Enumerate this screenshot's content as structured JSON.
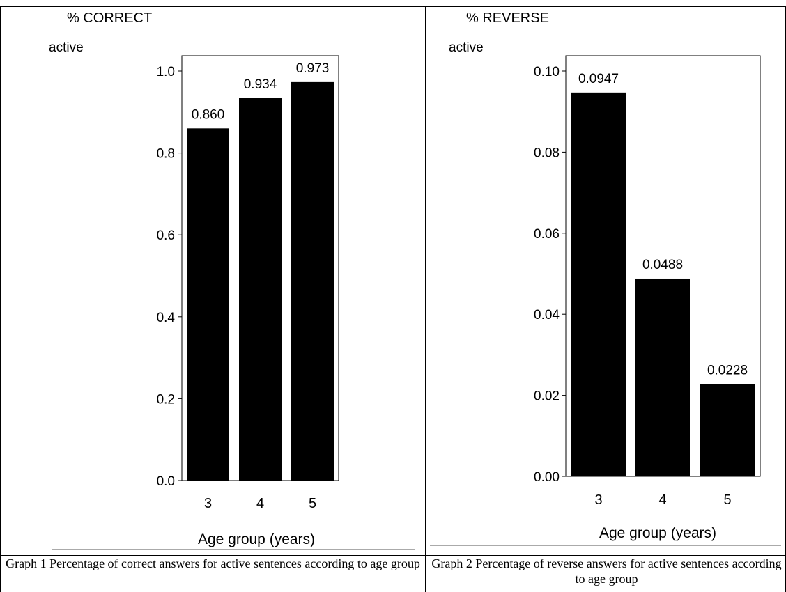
{
  "figures": [
    {
      "caption": "Graph 1 Percentage of correct answers for active sentences according to age group"
    },
    {
      "caption": "Graph 2 Percentage of reverse answers for active sentences according to age group"
    }
  ],
  "chart_data": [
    {
      "type": "bar",
      "title": "% CORRECT",
      "subtitle": "active",
      "xlabel": "Age group (years)",
      "ylabel": "",
      "categories": [
        "3",
        "4",
        "5"
      ],
      "values": [
        0.86,
        0.934,
        0.973
      ],
      "data_labels": [
        "0.860",
        "0.934",
        "0.973"
      ],
      "ylim": [
        0,
        1.0
      ],
      "y_ticks": [
        "0.0",
        "0.2",
        "0.4",
        "0.6",
        "0.8",
        "1.0"
      ],
      "bar_color": "#000000",
      "grid": false,
      "legend": "none"
    },
    {
      "type": "bar",
      "title": "% REVERSE",
      "subtitle": "active",
      "xlabel": "Age group (years)",
      "ylabel": "",
      "categories": [
        "3",
        "4",
        "5"
      ],
      "values": [
        0.0947,
        0.0488,
        0.0228
      ],
      "data_labels": [
        "0.0947",
        "0.0488",
        "0.0228"
      ],
      "ylim": [
        0,
        0.1
      ],
      "y_ticks": [
        "0.00",
        "0.02",
        "0.04",
        "0.06",
        "0.08",
        "0.10"
      ],
      "bar_color": "#000000",
      "grid": false,
      "legend": "none"
    }
  ]
}
